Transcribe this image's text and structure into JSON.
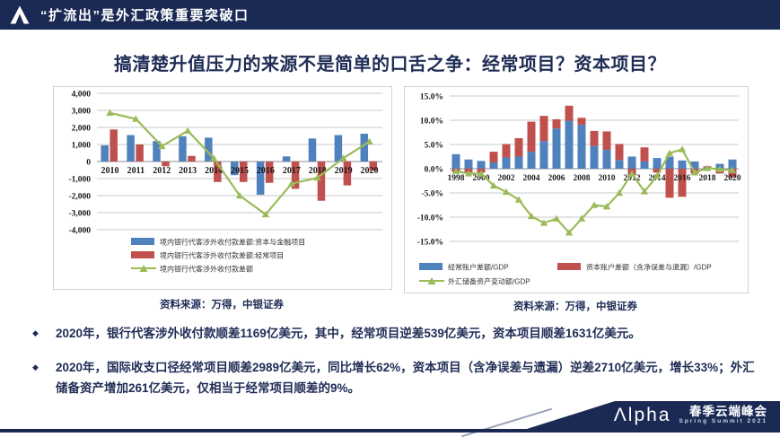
{
  "banner": {
    "title": "“扩流出”是外汇政策重要突破口"
  },
  "page_title": "搞清楚升值压力的来源不是简单的口舌之争：经常项目？资本项目？",
  "chart_data": [
    {
      "type": "bar",
      "bar_mode": "grouped",
      "grid": true,
      "legend_position": "bottom",
      "categories": [
        "2010",
        "2011",
        "2012",
        "2013",
        "2014",
        "2015",
        "2016",
        "2017",
        "2018",
        "2019",
        "2020"
      ],
      "series": [
        {
          "name": "境内银行代客涉外收付款差额:资本与金融项目",
          "type": "bar",
          "color": "#4F81BD",
          "values": [
            950,
            1550,
            1200,
            1480,
            1400,
            -800,
            -1950,
            300,
            1350,
            1550,
            1631
          ]
        },
        {
          "name": "境内银行代客涉外收付款差额:经常项目",
          "type": "bar",
          "color": "#C0504D",
          "values": [
            1880,
            1000,
            -280,
            330,
            -1200,
            -1200,
            -1250,
            -1600,
            -2300,
            -1400,
            -539
          ]
        },
        {
          "name": "境内银行代客涉外收付款差额",
          "type": "line",
          "color": "#9BBB59",
          "values": [
            2850,
            2500,
            900,
            1800,
            200,
            -2000,
            -3100,
            -1300,
            -950,
            200,
            1169
          ]
        }
      ],
      "ylim": [
        -4000,
        4000
      ],
      "ytick_step": 1000,
      "ytick_labels": [
        "4,000",
        "3,000",
        "2,000",
        "1,000",
        "0",
        "-1,000",
        "-2,000",
        "-3,000",
        "-4,000"
      ],
      "xtick_every": 1,
      "source": "资料来源：万得，中银证券"
    },
    {
      "type": "bar",
      "bar_mode": "stacked",
      "grid": true,
      "legend_position": "bottom",
      "categories": [
        "1998",
        "1999",
        "2000",
        "2001",
        "2002",
        "2003",
        "2004",
        "2005",
        "2006",
        "2007",
        "2008",
        "2009",
        "2010",
        "2011",
        "2012",
        "2013",
        "2014",
        "2015",
        "2016",
        "2017",
        "2018",
        "2019",
        "2020"
      ],
      "series": [
        {
          "name": "经常账户差额/GDP",
          "type": "bar",
          "color": "#4F81BD",
          "values": [
            3.0,
            1.9,
            1.6,
            1.3,
            2.3,
            2.5,
            3.5,
            5.7,
            8.3,
            9.9,
            9.1,
            4.7,
            3.9,
            1.8,
            2.5,
            1.5,
            2.2,
            2.5,
            1.7,
            1.5,
            0.3,
            1.0,
            1.9
          ]
        },
        {
          "name": "资本账户差额（含净误差与遗漏）/GDP",
          "type": "bar",
          "color": "#C0504D",
          "values": [
            -0.7,
            -0.8,
            -0.8,
            2.2,
            2.8,
            3.8,
            6.2,
            5.2,
            1.9,
            3.1,
            1.4,
            3.1,
            3.8,
            3.3,
            -1.3,
            2.9,
            -0.8,
            -6.0,
            -5.8,
            -1.0,
            0.2,
            -1.0,
            -1.8
          ]
        },
        {
          "name": "外汇储备资产变动额/GDP",
          "type": "line",
          "color": "#9BBB59",
          "values": [
            -0.5,
            -1.0,
            -1.0,
            -3.5,
            -4.8,
            -6.4,
            -9.8,
            -11.2,
            -10.3,
            -13.2,
            -10.3,
            -7.5,
            -7.8,
            -5.0,
            -1.0,
            -4.7,
            -1.5,
            3.2,
            4.0,
            -0.8,
            0.1,
            -0.1,
            -0.3
          ]
        }
      ],
      "ylim": [
        -15,
        15
      ],
      "ytick_step": 5,
      "ytick_labels": [
        "15.0%",
        "10.0%",
        "5.0%",
        "0.0%",
        "-5.0%",
        "-10.0%",
        "-15.0%"
      ],
      "xtick_every": 2,
      "source": "资料来源：万得，中银证券"
    }
  ],
  "bullets": {
    "marker": "◆",
    "items": [
      "2020年，银行代客涉外收付款顺差1169亿美元，其中，经常项目逆差539亿美元，资本项目顺差1631亿美元。",
      "2020年，国际收支口径经常项目顺差2989亿美元，同比增长62%，资本项目（含净误差与遗漏）逆差2710亿美元，增长33%；外汇储备资产增加261亿美元，仅相当于经常项目顺差的9%。"
    ]
  },
  "footer": {
    "logo": "Λlpha",
    "event_cn": "春季云端峰会",
    "event_en": "Spring Summit 2021"
  },
  "colors": {
    "navy": "#1B2A55",
    "bar_blue": "#4F81BD",
    "bar_red": "#C0504D",
    "line_green": "#9BBB59"
  }
}
